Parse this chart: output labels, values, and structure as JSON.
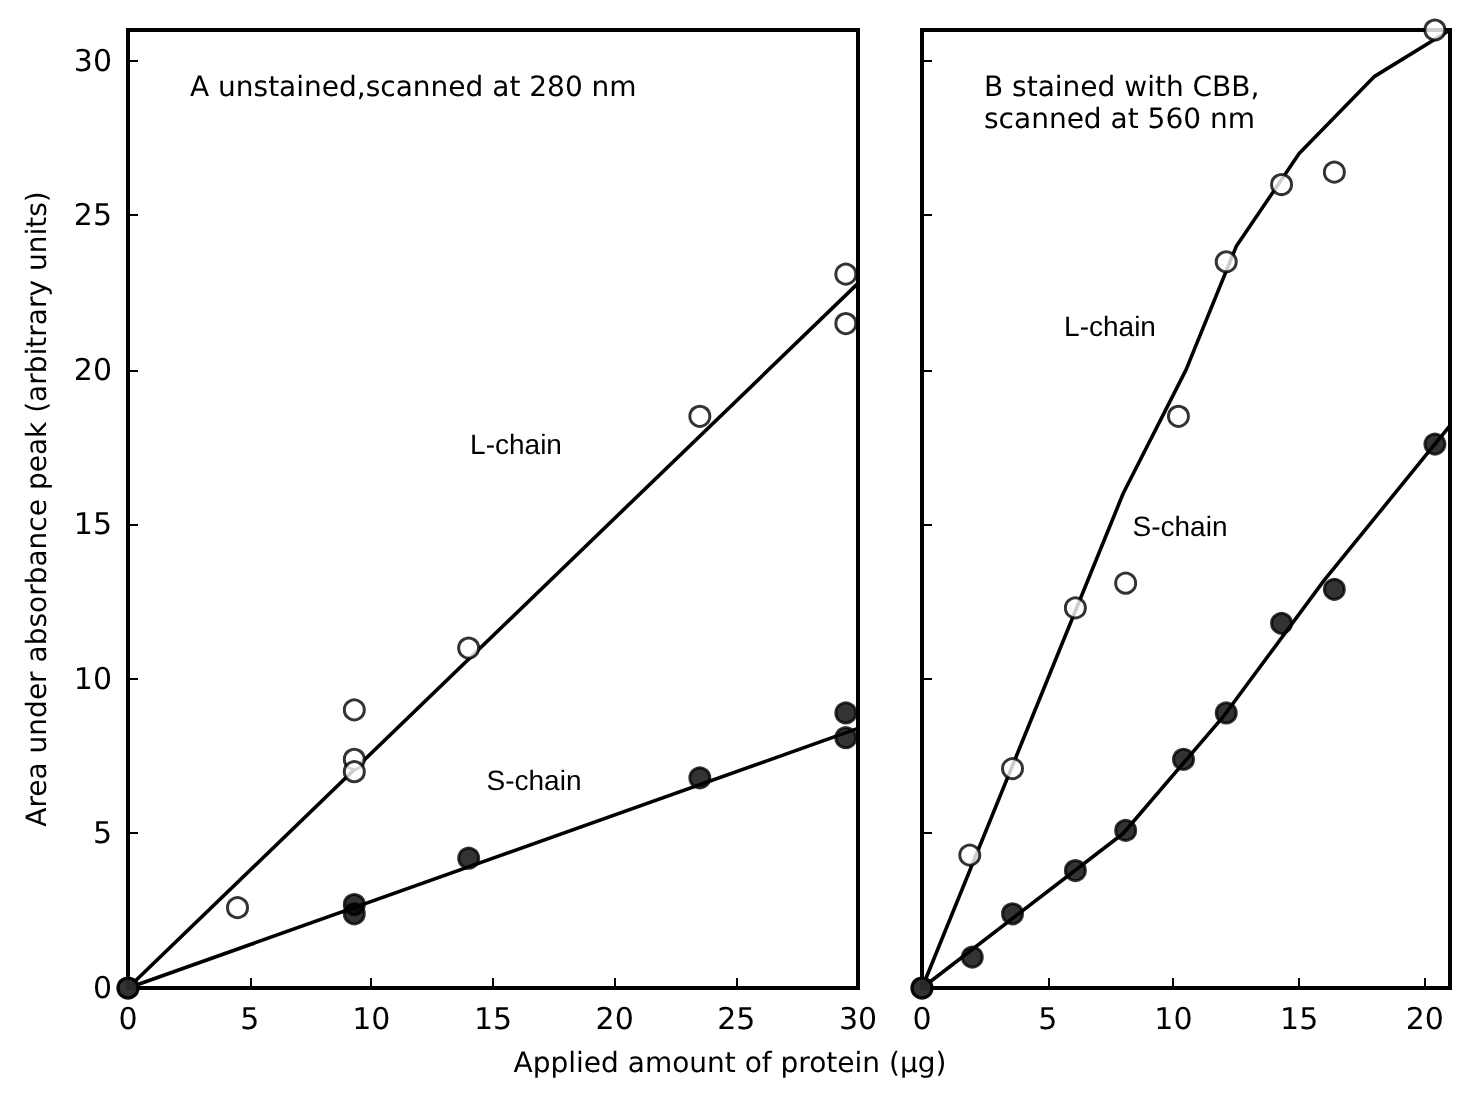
{
  "chart_data": [
    {
      "type": "scatter",
      "title": "A unstained,scanned at 280 nm",
      "xlabel": "Applied amount of protein (µg)",
      "ylabel": "Area under absorbance peak (arbitrary units)",
      "xlim": [
        0,
        30
      ],
      "xticks": [
        0,
        5,
        10,
        15,
        20,
        25,
        30
      ],
      "ylim": [
        0,
        31
      ],
      "yticks": [
        0,
        5,
        10,
        15,
        20,
        25,
        30
      ],
      "grid": false,
      "marker": "circle",
      "series": [
        {
          "type": "line",
          "line_style": "solid",
          "marker": "none",
          "color": "#000000",
          "x": [
            0,
            30
          ],
          "values": [
            0,
            22.8
          ]
        },
        {
          "type": "line",
          "line_style": "solid",
          "marker": "none",
          "color": "#000000",
          "x": [
            0,
            30
          ],
          "values": [
            0,
            8.4
          ]
        },
        {
          "color": "#ffffff",
          "x": [
            0,
            4.5,
            9.3,
            9.3,
            9.3,
            14,
            23.5,
            29.5,
            29.5
          ],
          "values": [
            0,
            2.6,
            9.0,
            7.4,
            7.0,
            11.0,
            18.5,
            23.1,
            21.5
          ]
        },
        {
          "color": "#000000",
          "x": [
            0,
            9.3,
            9.3,
            14,
            23.5,
            29.5,
            29.5
          ],
          "values": [
            0,
            2.7,
            2.4,
            4.2,
            6.8,
            8.9,
            8.1
          ]
        }
      ],
      "annotations": [
        "L-chain",
        "S-chain"
      ]
    },
    {
      "type": "scatter",
      "title": "B stained with CBB,\nscanned at 560 nm",
      "xlim": [
        0,
        21
      ],
      "xticks": [
        0,
        5,
        10,
        15,
        20
      ],
      "ylim": [
        0,
        31
      ],
      "yticks": [
        {
          "value": 0,
          "label": null
        },
        {
          "value": 5,
          "label": null
        },
        {
          "value": 10,
          "label": null
        },
        {
          "value": 15,
          "label": null
        },
        {
          "value": 20,
          "label": null
        },
        {
          "value": 25,
          "label": null
        },
        {
          "value": 30,
          "label": null
        }
      ],
      "tick_labels": "x",
      "grid": false,
      "marker": "circle",
      "series": [
        {
          "type": "line",
          "line_style": "solid",
          "marker": "none",
          "color": "#000000",
          "x": [
            0,
            4,
            8,
            10.5,
            12.5,
            15,
            18,
            21
          ],
          "values": [
            0,
            8,
            16,
            20,
            24,
            27,
            29.5,
            31
          ]
        },
        {
          "type": "line",
          "line_style": "solid",
          "marker": "none",
          "color": "#000000",
          "x": [
            0,
            8,
            12,
            16,
            20,
            21
          ],
          "values": [
            0,
            5,
            8.8,
            13.2,
            17.2,
            18.2
          ]
        },
        {
          "color": "#ffffff",
          "x": [
            0,
            1.9,
            3.6,
            6.1,
            8.1,
            10.2,
            12.1,
            14.3,
            16.4,
            20.4
          ],
          "values": [
            0,
            4.3,
            7.1,
            12.3,
            13.1,
            18.5,
            23.5,
            26.0,
            26.4,
            31.0
          ]
        },
        {
          "color": "#000000",
          "x": [
            0,
            2.0,
            3.6,
            6.1,
            8.1,
            10.4,
            12.1,
            14.3,
            16.4,
            20.4
          ],
          "values": [
            0,
            1.0,
            2.4,
            3.8,
            5.1,
            7.4,
            8.9,
            11.8,
            12.9,
            17.6
          ]
        }
      ],
      "annotations": [
        "L-chain",
        "S-chain"
      ]
    }
  ]
}
